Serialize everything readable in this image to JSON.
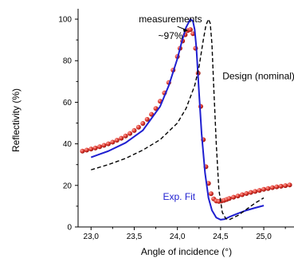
{
  "chart_data": {
    "type": "line",
    "xlabel": "Angle of incidence (°)",
    "ylabel": "Reflectivity (%)",
    "xlim": [
      22.85,
      25.35
    ],
    "ylim": [
      0,
      105
    ],
    "x_ticks": [
      "23,0",
      "23,5",
      "24,0",
      "24,5",
      "25,0"
    ],
    "x_tick_values": [
      23.0,
      23.5,
      24.0,
      24.5,
      25.0
    ],
    "y_ticks": [
      "0",
      "20",
      "40",
      "60",
      "80",
      "100"
    ],
    "y_tick_values": [
      0,
      20,
      40,
      60,
      80,
      100
    ],
    "grid": false,
    "annotations": [
      {
        "text": "measurements",
        "x": 23.92,
        "y": 98.5
      },
      {
        "text": "~97%",
        "x": 23.92,
        "y": 90.5
      },
      {
        "text": "Design (nominal)",
        "x": 24.94,
        "y": 71
      },
      {
        "text": "Exp. Fit",
        "x": 24.02,
        "y": 13
      }
    ],
    "series": [
      {
        "style": "dots",
        "color": "#d9302a",
        "x": [
          22.9,
          22.95,
          23.0,
          23.05,
          23.1,
          23.15,
          23.2,
          23.25,
          23.3,
          23.35,
          23.4,
          23.45,
          23.5,
          23.55,
          23.6,
          23.65,
          23.7,
          23.75,
          23.8,
          23.85,
          23.9,
          23.95,
          24.0,
          24.03,
          24.06,
          24.09,
          24.12,
          24.15,
          24.18,
          24.21,
          24.24,
          24.27,
          24.3,
          24.33,
          24.36,
          24.39,
          24.42,
          24.45,
          24.48,
          24.51,
          24.54,
          24.57,
          24.6,
          24.65,
          24.7,
          24.75,
          24.8,
          24.85,
          24.9,
          24.95,
          25.0,
          25.05,
          25.1,
          25.15,
          25.2,
          25.25,
          25.3
        ],
        "y": [
          36.5,
          37,
          37.5,
          38,
          38.6,
          39.3,
          40,
          40.8,
          41.7,
          42.7,
          43.8,
          45,
          46.4,
          48,
          49.8,
          51.8,
          54.2,
          57,
          60.5,
          64.5,
          69.5,
          75.5,
          82,
          86,
          89.5,
          92.5,
          94.5,
          95,
          93,
          86,
          74,
          58,
          42,
          29,
          21,
          16,
          13.5,
          12.5,
          12.3,
          12.5,
          12.8,
          13.2,
          13.7,
          14.3,
          14.9,
          15.5,
          16.1,
          16.6,
          17.1,
          17.6,
          18.1,
          18.5,
          18.9,
          19.3,
          19.6,
          19.9,
          20.2
        ]
      },
      {
        "style": "solid",
        "color": "#1f1fd0",
        "x": [
          23.0,
          23.2,
          23.4,
          23.6,
          23.8,
          23.9,
          24.0,
          24.05,
          24.1,
          24.15,
          24.18,
          24.2,
          24.22,
          24.25,
          24.28,
          24.32,
          24.36,
          24.4,
          24.45,
          24.5,
          24.55,
          24.6,
          24.7,
          24.8,
          24.9,
          25.0
        ],
        "y": [
          33.5,
          36.5,
          40.5,
          46.5,
          58,
          68,
          81,
          89,
          96,
          100,
          99,
          95,
          86,
          65,
          45,
          26,
          14,
          8,
          4.5,
          3.5,
          3.8,
          4.8,
          6.5,
          8,
          9.2,
          10.3
        ]
      },
      {
        "style": "dashed",
        "color": "#000000",
        "x": [
          23.0,
          23.2,
          23.4,
          23.6,
          23.8,
          24.0,
          24.1,
          24.2,
          24.25,
          24.3,
          24.33,
          24.36,
          24.38,
          24.4,
          24.42,
          24.45,
          24.48,
          24.52,
          24.56,
          24.6,
          24.7,
          24.8,
          24.9,
          25.0
        ],
        "y": [
          27.5,
          30,
          33,
          37,
          42,
          50,
          57,
          68,
          77,
          90,
          97,
          100,
          98,
          88,
          68,
          40,
          18,
          7,
          4,
          3.5,
          5.5,
          8.5,
          11.5,
          14
        ]
      }
    ]
  }
}
